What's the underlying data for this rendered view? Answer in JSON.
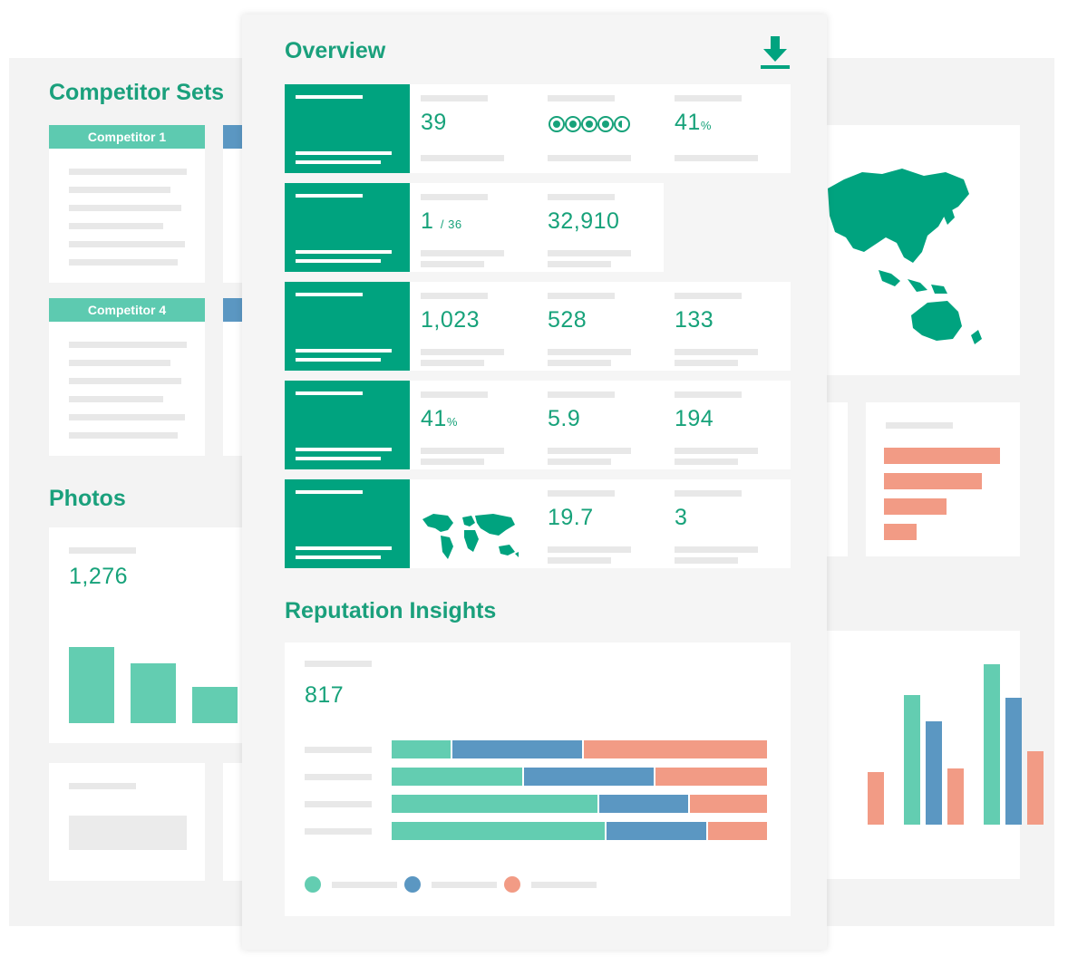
{
  "colors": {
    "brand_green": "#00a37f",
    "teal": "#63cdb1",
    "blue": "#5b97c2",
    "salmon": "#f29b85"
  },
  "left_panel": {
    "competitor_sets_title": "Competitor Sets",
    "competitor_1_label": "Competitor 1",
    "competitor_4_label": "Competitor 4",
    "photos_title": "Photos",
    "photos_count": "1,276"
  },
  "overview": {
    "title": "Overview",
    "download_icon": "download-icon",
    "rows": [
      {
        "v1": "39",
        "rating_icon": "rating-circles-icon",
        "v3_num": "41",
        "v3_unit": "%"
      },
      {
        "v1_num": "1",
        "v1_suffix": "/ 36",
        "v2": "32,910"
      },
      {
        "v1": "1,023",
        "v2": "528",
        "v3": "133"
      },
      {
        "v1_num": "41",
        "v1_unit": "%",
        "v2": "5.9",
        "v3": "194"
      },
      {
        "map_icon": "world-map-icon",
        "v2": "19.7",
        "v3": "3"
      }
    ]
  },
  "reputation": {
    "title": "Reputation Insights",
    "count": "817",
    "bars": [
      {
        "teal": 16,
        "blue": 35,
        "salmon": 49
      },
      {
        "teal": 35,
        "blue": 35,
        "salmon": 30
      },
      {
        "teal": 55,
        "blue": 24,
        "salmon": 21
      },
      {
        "teal": 57,
        "blue": 27,
        "salmon": 16
      }
    ]
  },
  "right_panel": {
    "map_icon": "asia-map-icon",
    "hbar_values": [
      100,
      84,
      54,
      28
    ],
    "vbar_groups": [
      {
        "teal": 0,
        "blue": 0,
        "salmon": 45
      },
      {
        "teal": 110,
        "blue": 88,
        "salmon": 48
      },
      {
        "teal": 136,
        "blue": 108,
        "salmon": 62
      }
    ]
  }
}
